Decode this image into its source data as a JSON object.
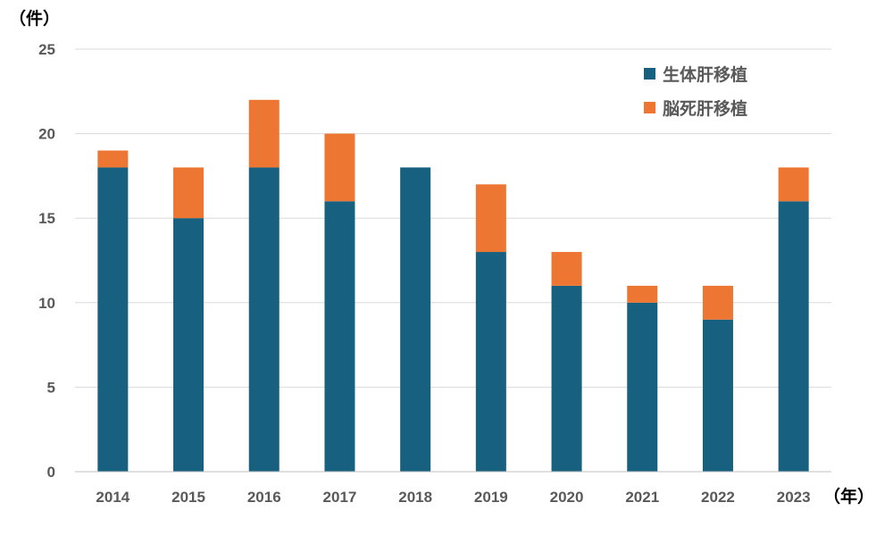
{
  "chart_data": {
    "type": "bar",
    "stacked": true,
    "title": "",
    "ylabel": "（件）",
    "xlabel": "（年）",
    "ylim": [
      0,
      25
    ],
    "yticks": [
      0,
      5,
      10,
      15,
      20,
      25
    ],
    "grid": true,
    "legend_position": "top-right",
    "categories": [
      "2014",
      "2015",
      "2016",
      "2017",
      "2018",
      "2019",
      "2020",
      "2021",
      "2022",
      "2023"
    ],
    "series": [
      {
        "name": "生体肝移植",
        "color": "#17607f",
        "values": [
          18,
          15,
          18,
          16,
          18,
          13,
          11,
          10,
          9,
          16
        ]
      },
      {
        "name": "脳死肝移植",
        "color": "#ed7632",
        "values": [
          1,
          3,
          4,
          4,
          0,
          4,
          2,
          1,
          2,
          2
        ]
      }
    ]
  }
}
